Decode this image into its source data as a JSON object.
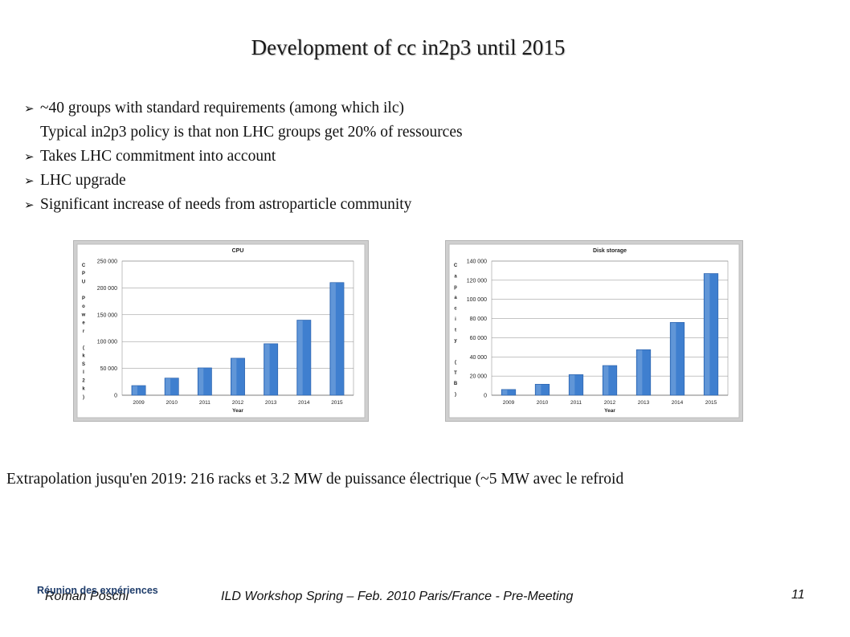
{
  "title": "Development of cc in2p3 until 2015",
  "bullets": [
    {
      "text": "~40 groups with  standard requirements (among which ilc)",
      "marked": true
    },
    {
      "text": "Typical in2p3 policy is that non LHC groups get 20% of ressources",
      "marked": false
    },
    {
      "text": "Takes LHC commitment into account",
      "marked": true
    },
    {
      "text": "LHC upgrade",
      "marked": true
    },
    {
      "text": "Significant increase of needs from astroparticle community",
      "marked": true
    }
  ],
  "bullet_icon": "arrow-bullet-icon",
  "extrapolation": "Extrapolation jusqu'en 2019: 216 racks et 3.2 MW de puissance électrique (~5 MW avec le refroid",
  "footer": {
    "meeting": "Réunion des expériences",
    "author": "Roman Pöschl",
    "event": "ILD Workshop Spring – Feb. 2010 Paris/France - Pre-Meeting",
    "page": "11"
  },
  "colors": {
    "bar": "#3f7fcf",
    "bar_dark": "#2a5fa8",
    "plot_bg": "#ffffff",
    "frame_bg": "#cfcfcf",
    "footer_blue": "#1f3d6b"
  },
  "chart_data": [
    {
      "type": "bar",
      "title": "CPU",
      "xlabel": "Year",
      "ylabel": "CPU Power (kSI2k)",
      "categories": [
        "2009",
        "2010",
        "2011",
        "2012",
        "2013",
        "2014",
        "2015"
      ],
      "values": [
        18000,
        32000,
        51000,
        69000,
        96000,
        140000,
        210000
      ],
      "yticks": [
        "0",
        "50 000",
        "100 000",
        "150 000",
        "200 000",
        "250 000"
      ],
      "ylim": [
        0,
        250000
      ],
      "grid": true,
      "legend": "none"
    },
    {
      "type": "bar",
      "title": "Disk storage",
      "xlabel": "Year",
      "ylabel": "Capacity (TB)",
      "categories": [
        "2009",
        "2010",
        "2011",
        "2012",
        "2013",
        "2014",
        "2015"
      ],
      "values": [
        6000,
        11500,
        21500,
        31000,
        47500,
        76000,
        127000
      ],
      "yticks": [
        "0",
        "20 000",
        "40 000",
        "60 000",
        "80 000",
        "100 000",
        "120 000",
        "140 000"
      ],
      "ylim": [
        0,
        140000
      ],
      "grid": true,
      "legend": "none"
    }
  ]
}
